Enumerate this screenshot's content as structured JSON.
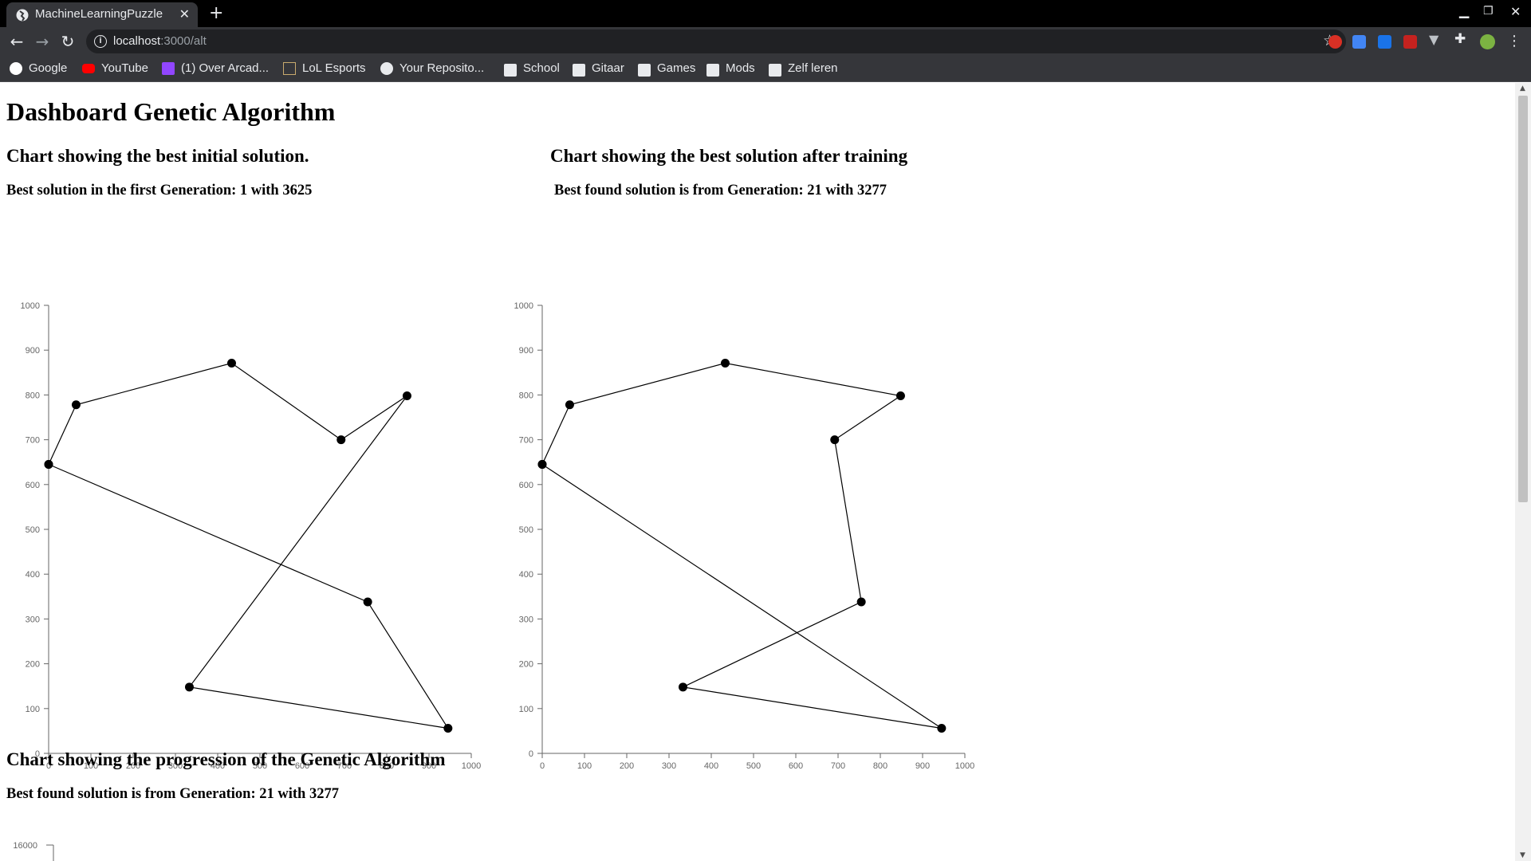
{
  "browser": {
    "tab_title": "MachineLearningPuzzle",
    "url_host": "localhost",
    "url_path": ":3000/alt",
    "bookmarks": [
      {
        "label": "Google",
        "icon": "google-icon"
      },
      {
        "label": "YouTube",
        "icon": "youtube-icon"
      },
      {
        "label": "(1) Over Arcad...",
        "icon": "twitch-icon"
      },
      {
        "label": "LoL Esports",
        "icon": "lol-esports-icon"
      },
      {
        "label": "Your Reposito...",
        "icon": "github-icon"
      },
      {
        "label": "School",
        "icon": "folder-icon"
      },
      {
        "label": "Gitaar",
        "icon": "folder-icon"
      },
      {
        "label": "Games",
        "icon": "folder-icon"
      },
      {
        "label": "Mods",
        "icon": "folder-icon"
      },
      {
        "label": "Zelf leren",
        "icon": "folder-icon"
      }
    ]
  },
  "page": {
    "title": "Dashboard Genetic Algorithm",
    "initial": {
      "heading": "Chart showing the best initial solution.",
      "subheading": "Best solution in the first Generation: 1 with 3625"
    },
    "trained": {
      "heading": "Chart showing the best solution after training",
      "subheading": "Best found solution is from Generation: 21 with 3277"
    },
    "progression": {
      "heading": "Chart showing the progression of the Genetic Algorithm",
      "subheading": "Best found solution is from Generation: 21 with 3277"
    }
  },
  "chart_data": [
    {
      "type": "line",
      "xlim": [
        0,
        1000
      ],
      "ylim": [
        0,
        1000
      ],
      "xticks": [
        0,
        100,
        200,
        300,
        400,
        500,
        600,
        700,
        800,
        900,
        1000
      ],
      "yticks": [
        0,
        100,
        200,
        300,
        400,
        500,
        600,
        700,
        800,
        900,
        1000
      ],
      "points": [
        [
          0,
          645
        ],
        [
          65,
          778
        ],
        [
          433,
          871
        ],
        [
          692,
          700
        ],
        [
          848,
          798
        ],
        [
          333,
          148
        ],
        [
          945,
          56
        ],
        [
          755,
          338
        ],
        [
          0,
          645
        ]
      ]
    },
    {
      "type": "line",
      "xlim": [
        0,
        1000
      ],
      "ylim": [
        0,
        1000
      ],
      "xticks": [
        0,
        100,
        200,
        300,
        400,
        500,
        600,
        700,
        800,
        900,
        1000
      ],
      "yticks": [
        0,
        100,
        200,
        300,
        400,
        500,
        600,
        700,
        800,
        900,
        1000
      ],
      "points": [
        [
          0,
          645
        ],
        [
          65,
          778
        ],
        [
          433,
          871
        ],
        [
          848,
          798
        ],
        [
          692,
          700
        ],
        [
          755,
          338
        ],
        [
          333,
          148
        ],
        [
          945,
          56
        ],
        [
          0,
          645
        ]
      ]
    },
    {
      "type": "line",
      "yticks": [
        16000
      ],
      "points": []
    }
  ],
  "colors": {
    "chrome_dark": "#202124",
    "chrome": "#35363a",
    "chart_line": "#000000",
    "chart_axis": "#666666"
  }
}
